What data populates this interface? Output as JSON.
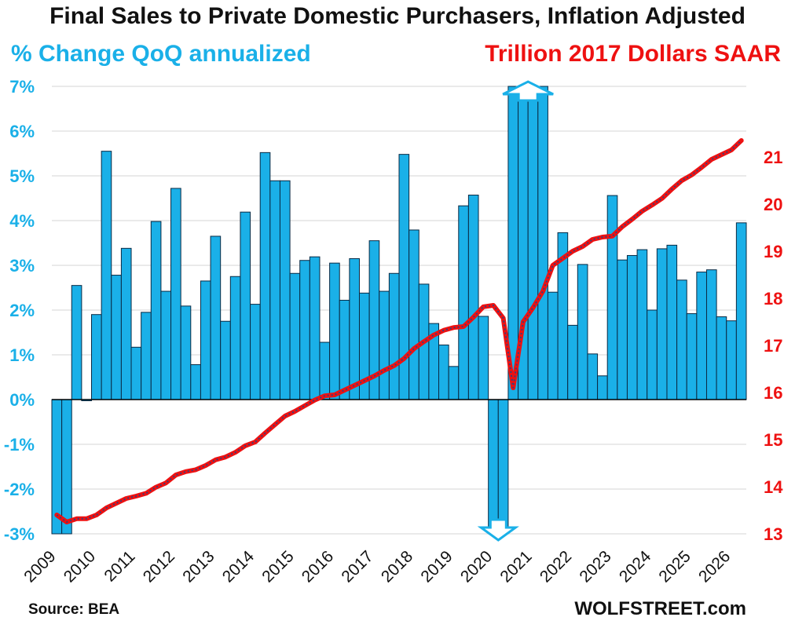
{
  "chart_data": {
    "type": "bar+line",
    "title": "Final Sales to Private Domestic Purchasers, Inflation Adjusted",
    "source": "Source: BEA",
    "brand": "WOLFSTREET.com",
    "left_axis": {
      "label": "% Change QoQ annualized",
      "ylim": [
        -3,
        7
      ],
      "ticks": [
        "-3%",
        "-2%",
        "-1%",
        "0%",
        "1%",
        "2%",
        "3%",
        "4%",
        "5%",
        "6%",
        "7%"
      ],
      "color": "#1ab0e8"
    },
    "right_axis": {
      "label": "Trillion 2017 Dollars SAAR",
      "ylim": [
        13,
        22.5
      ],
      "ticks": [
        "13",
        "14",
        "15",
        "16",
        "17",
        "18",
        "19",
        "20",
        "21"
      ],
      "color": "#ee1111"
    },
    "x_axis": {
      "start_year": 2009,
      "tick_labels": [
        "2009",
        "2010",
        "2011",
        "2012",
        "2013",
        "2014",
        "2015",
        "2016",
        "2017",
        "2018",
        "2019",
        "2020",
        "2021",
        "2022",
        "2023",
        "2024",
        "2025",
        "2026"
      ]
    },
    "grid": true,
    "bar_color": "#1ab0e8",
    "line_color": "#ee1111",
    "series": [
      {
        "name": "% Change QoQ annualized",
        "type": "bar",
        "axis": "left",
        "values": [
          -3.0,
          -3.0,
          2.55,
          -0.02,
          1.9,
          5.55,
          2.78,
          3.38,
          1.17,
          1.95,
          3.98,
          2.42,
          4.72,
          2.09,
          0.78,
          2.65,
          3.65,
          1.75,
          2.75,
          4.19,
          2.13,
          5.52,
          4.89,
          4.89,
          2.82,
          3.11,
          3.19,
          1.28,
          3.05,
          2.22,
          3.15,
          2.38,
          3.55,
          2.42,
          2.82,
          5.48,
          3.79,
          2.58,
          1.7,
          1.22,
          0.74,
          4.33,
          4.57,
          1.86,
          -3.0,
          -3.0,
          7.0,
          7.0,
          7.0,
          7.0,
          2.4,
          3.73,
          1.66,
          3.02,
          1.02,
          0.53,
          4.56,
          3.12,
          3.22,
          3.35,
          2.0,
          3.37,
          3.45,
          2.67,
          1.92,
          2.85,
          2.9,
          1.85,
          1.76,
          3.95
        ],
        "clipped_indicators": [
          "down",
          "down",
          "up"
        ]
      },
      {
        "name": "Trillion 2017 Dollars SAAR",
        "type": "line",
        "axis": "right",
        "values": [
          13.4,
          13.25,
          13.32,
          13.32,
          13.4,
          13.55,
          13.65,
          13.75,
          13.8,
          13.86,
          13.99,
          14.08,
          14.25,
          14.32,
          14.36,
          14.45,
          14.57,
          14.63,
          14.73,
          14.87,
          14.95,
          15.14,
          15.32,
          15.5,
          15.6,
          15.72,
          15.84,
          15.93,
          15.95,
          16.05,
          16.15,
          16.25,
          16.35,
          16.47,
          16.57,
          16.72,
          16.93,
          17.08,
          17.22,
          17.32,
          17.38,
          17.4,
          17.6,
          17.82,
          17.85,
          17.58,
          16.1,
          17.5,
          17.8,
          18.15,
          18.7,
          18.85,
          19.0,
          19.1,
          19.25,
          19.3,
          19.32,
          19.52,
          19.68,
          19.85,
          19.98,
          20.12,
          20.32,
          20.5,
          20.62,
          20.78,
          20.95,
          21.05,
          21.15,
          21.35
        ]
      }
    ]
  }
}
